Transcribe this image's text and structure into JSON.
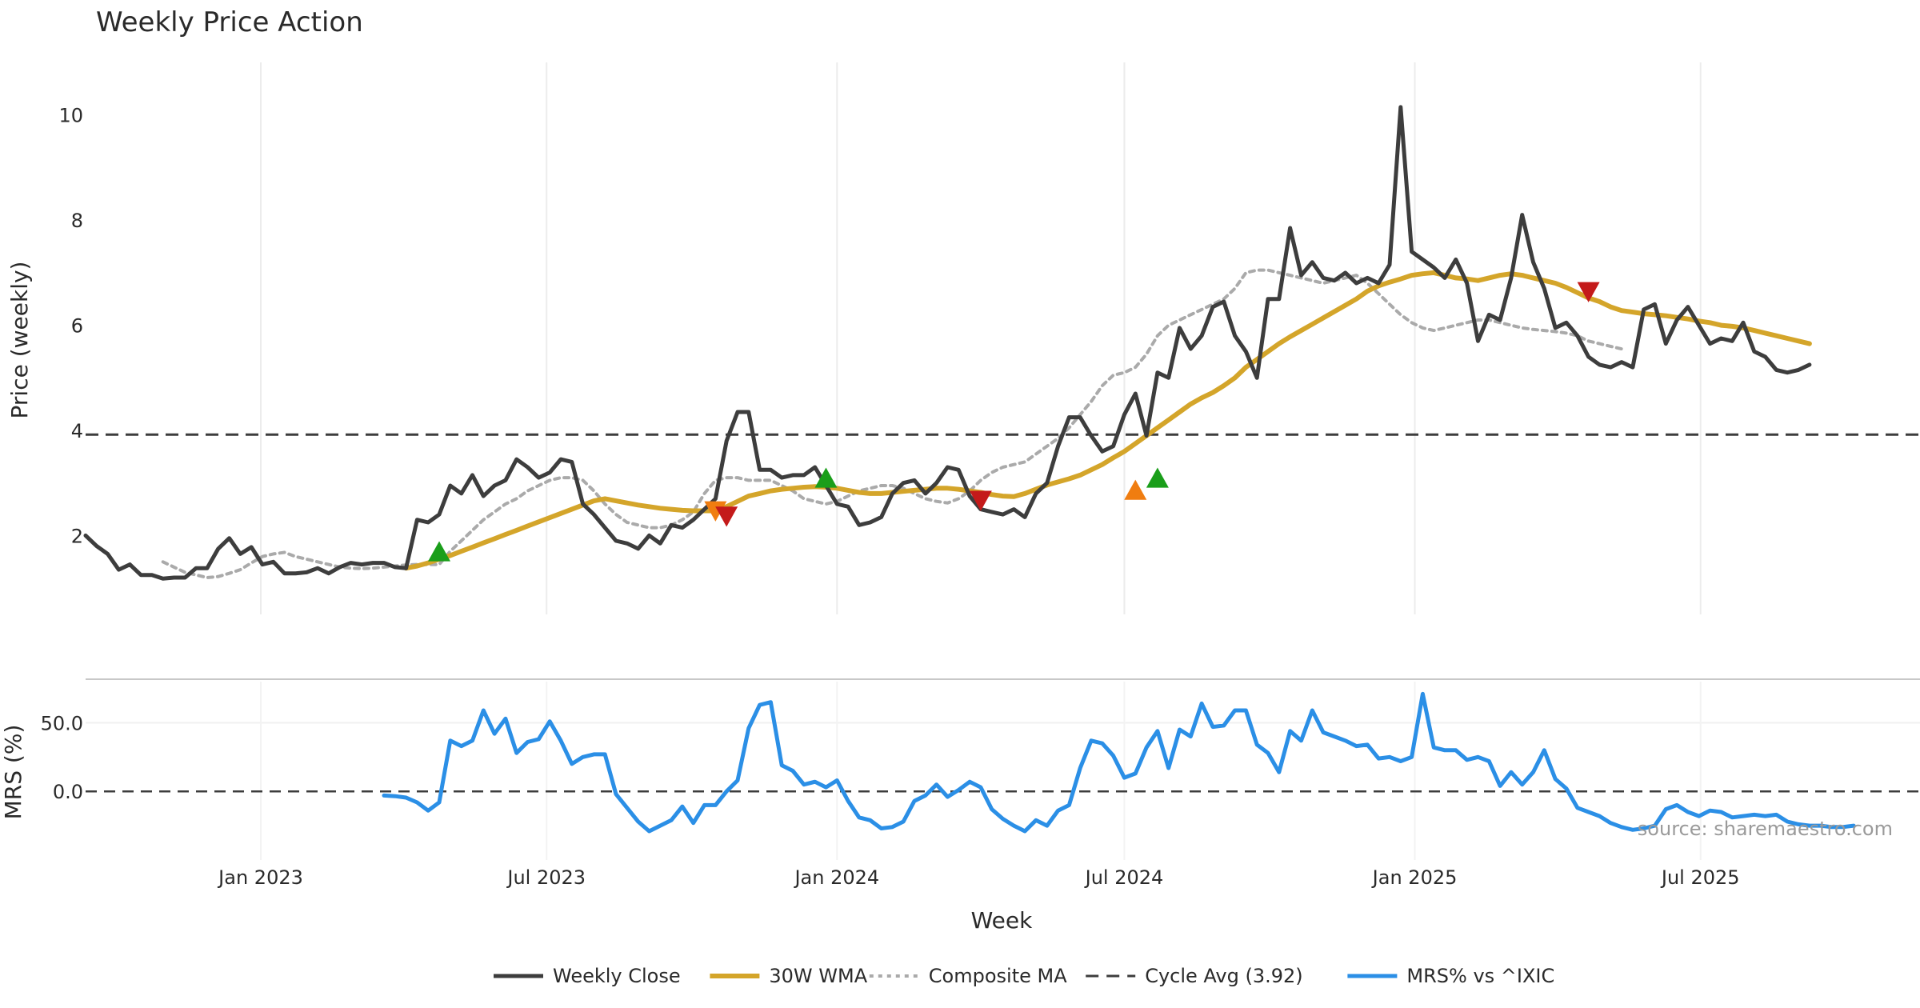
{
  "chart_data": [
    {
      "type": "line",
      "title": "Weekly Price Action",
      "xlabel": "Week",
      "ylabel": "Price (weekly)",
      "x_range": [
        "2022-09-12",
        "2025-11-17"
      ],
      "ylim": [
        0.5,
        11.0
      ],
      "y_ticks": [
        2,
        4,
        6,
        8,
        10
      ],
      "x_ticks": [
        {
          "date": "2023-01-01",
          "label": "Jan 2023"
        },
        {
          "date": "2023-07-01",
          "label": "Jul 2023"
        },
        {
          "date": "2024-01-01",
          "label": "Jan 2024"
        },
        {
          "date": "2024-07-01",
          "label": "Jul 2024"
        },
        {
          "date": "2025-01-01",
          "label": "Jan 2025"
        },
        {
          "date": "2025-07-01",
          "label": "Jul 2025"
        }
      ],
      "grid": true,
      "reference_line": {
        "name": "Cycle Avg (3.92)",
        "value": 3.92
      },
      "series": [
        {
          "name": "Weekly Close",
          "color": "#3d3d3d",
          "start": "2022-09-12",
          "values": [
            2.0,
            1.8,
            1.65,
            1.35,
            1.45,
            1.25,
            1.25,
            1.18,
            1.2,
            1.2,
            1.38,
            1.38,
            1.75,
            1.95,
            1.65,
            1.78,
            1.45,
            1.5,
            1.28,
            1.28,
            1.3,
            1.38,
            1.28,
            1.4,
            1.48,
            1.45,
            1.48,
            1.48,
            1.4,
            1.38,
            2.3,
            2.25,
            2.4,
            2.95,
            2.8,
            3.15,
            2.75,
            2.95,
            3.05,
            3.45,
            3.3,
            3.1,
            3.2,
            3.45,
            3.4,
            2.6,
            2.4,
            2.15,
            1.9,
            1.85,
            1.75,
            2.0,
            1.85,
            2.2,
            2.15,
            2.3,
            2.5,
            2.7,
            3.8,
            4.35,
            4.35,
            3.25,
            3.25,
            3.1,
            3.15,
            3.15,
            3.3,
            2.95,
            2.6,
            2.55,
            2.2,
            2.25,
            2.35,
            2.8,
            3.0,
            3.05,
            2.8,
            3.0,
            3.3,
            3.25,
            2.75,
            2.5,
            2.45,
            2.4,
            2.5,
            2.35,
            2.8,
            3.0,
            3.7,
            4.25,
            4.25,
            3.9,
            3.6,
            3.7,
            4.3,
            4.7,
            3.9,
            5.1,
            5.0,
            5.95,
            5.55,
            5.8,
            6.35,
            6.45,
            5.8,
            5.5,
            5.0,
            6.5,
            6.5,
            7.85,
            6.95,
            7.2,
            6.9,
            6.85,
            7.0,
            6.8,
            6.9,
            6.8,
            7.15,
            10.15,
            7.4,
            7.25,
            7.1,
            6.9,
            7.25,
            6.8,
            5.7,
            6.2,
            6.1,
            6.9,
            8.1,
            7.2,
            6.7,
            5.95,
            6.05,
            5.8,
            5.4,
            5.25,
            5.2,
            5.3,
            5.2,
            6.3,
            6.4,
            5.65,
            6.1,
            6.35,
            6.0,
            5.65,
            5.75,
            5.7,
            6.05,
            5.5,
            5.4,
            5.15,
            5.1,
            5.15,
            5.25
          ]
        },
        {
          "name": "30W WMA",
          "color": "#d4a52a",
          "start": "2023-04-03",
          "values": [
            1.38,
            1.42,
            1.48,
            1.55,
            1.62,
            1.7,
            1.78,
            1.86,
            1.94,
            2.02,
            2.1,
            2.18,
            2.26,
            2.34,
            2.42,
            2.5,
            2.58,
            2.66,
            2.7,
            2.66,
            2.62,
            2.58,
            2.55,
            2.52,
            2.5,
            2.48,
            2.47,
            2.47,
            2.47,
            2.55,
            2.65,
            2.75,
            2.8,
            2.85,
            2.88,
            2.9,
            2.92,
            2.93,
            2.92,
            2.9,
            2.86,
            2.82,
            2.8,
            2.8,
            2.82,
            2.84,
            2.86,
            2.88,
            2.9,
            2.9,
            2.88,
            2.85,
            2.82,
            2.78,
            2.75,
            2.74,
            2.8,
            2.88,
            2.96,
            3.02,
            3.08,
            3.15,
            3.25,
            3.35,
            3.48,
            3.6,
            3.75,
            3.9,
            4.05,
            4.2,
            4.35,
            4.5,
            4.62,
            4.72,
            4.85,
            5.0,
            5.2,
            5.35,
            5.5,
            5.65,
            5.78,
            5.9,
            6.02,
            6.14,
            6.26,
            6.38,
            6.5,
            6.65,
            6.75,
            6.82,
            6.88,
            6.95,
            6.98,
            7.0,
            6.95,
            6.9,
            6.88,
            6.85,
            6.9,
            6.95,
            6.98,
            6.95,
            6.9,
            6.85,
            6.8,
            6.72,
            6.62,
            6.52,
            6.45,
            6.35,
            6.28,
            6.25,
            6.22,
            6.2,
            6.18,
            6.15,
            6.12,
            6.08,
            6.05,
            6.0,
            5.98,
            5.95,
            5.9,
            5.85,
            5.8,
            5.75,
            5.7,
            5.65
          ]
        },
        {
          "name": "Composite MA",
          "color": "#aaaaaa",
          "start": "2022-10-31",
          "values": [
            1.5,
            1.4,
            1.3,
            1.25,
            1.2,
            1.22,
            1.28,
            1.35,
            1.48,
            1.6,
            1.65,
            1.68,
            1.6,
            1.55,
            1.5,
            1.45,
            1.4,
            1.38,
            1.37,
            1.38,
            1.4,
            1.42,
            1.44,
            1.45,
            1.45,
            1.45,
            1.7,
            1.9,
            2.1,
            2.3,
            2.45,
            2.6,
            2.7,
            2.85,
            2.95,
            3.05,
            3.1,
            3.1,
            3.05,
            2.85,
            2.6,
            2.4,
            2.25,
            2.2,
            2.15,
            2.15,
            2.2,
            2.3,
            2.45,
            2.8,
            3.05,
            3.1,
            3.1,
            3.05,
            3.05,
            3.05,
            2.95,
            2.85,
            2.7,
            2.65,
            2.6,
            2.65,
            2.75,
            2.85,
            2.9,
            2.95,
            2.95,
            2.9,
            2.8,
            2.7,
            2.65,
            2.62,
            2.7,
            2.85,
            3.05,
            3.2,
            3.3,
            3.35,
            3.4,
            3.55,
            3.7,
            3.85,
            4.05,
            4.3,
            4.55,
            4.85,
            5.05,
            5.1,
            5.2,
            5.45,
            5.8,
            6.0,
            6.1,
            6.2,
            6.3,
            6.4,
            6.5,
            6.7,
            7.0,
            7.05,
            7.05,
            7.0,
            6.95,
            6.9,
            6.85,
            6.8,
            6.85,
            6.9,
            6.95,
            6.8,
            6.6,
            6.4,
            6.2,
            6.05,
            5.95,
            5.9,
            5.95,
            6.0,
            6.05,
            6.1,
            6.1,
            6.05,
            6.0,
            5.95,
            5.92,
            5.9,
            5.88,
            5.85,
            5.8,
            5.7,
            5.65,
            5.6,
            5.55
          ]
        }
      ],
      "markers": [
        {
          "date": "2023-04-24",
          "value": 1.68,
          "kind": "up",
          "color": "#1a9e1a"
        },
        {
          "date": "2023-10-16",
          "value": 2.48,
          "kind": "down",
          "color": "#f07d10"
        },
        {
          "date": "2023-10-23",
          "value": 2.38,
          "kind": "down",
          "color": "#c41a1a"
        },
        {
          "date": "2023-12-25",
          "value": 3.08,
          "kind": "up",
          "color": "#1a9e1a"
        },
        {
          "date": "2024-04-01",
          "value": 2.68,
          "kind": "down",
          "color": "#c41a1a"
        },
        {
          "date": "2024-07-08",
          "value": 2.85,
          "kind": "up",
          "color": "#f07d10"
        },
        {
          "date": "2024-07-22",
          "value": 3.08,
          "kind": "up",
          "color": "#1a9e1a"
        },
        {
          "date": "2025-04-21",
          "value": 6.65,
          "kind": "down",
          "color": "#c41a1a"
        }
      ]
    },
    {
      "type": "line",
      "title": "",
      "xlabel": "Week",
      "ylabel": "MRS (%)",
      "ylim": [
        -50,
        80
      ],
      "y_ticks": [
        {
          "value": 0,
          "label": "0.0"
        },
        {
          "value": 50,
          "label": "50.0"
        }
      ],
      "reference_line": {
        "value": 0
      },
      "series": [
        {
          "name": "MRS% vs ^IXIC",
          "color": "#2b8fe6",
          "start": "2023-03-20",
          "values": [
            -3,
            -3.5,
            -4.5,
            -8,
            -14,
            -8,
            37,
            33,
            37,
            59,
            42,
            53,
            28,
            36,
            38,
            51,
            37,
            20,
            25,
            27,
            27,
            -2,
            -12,
            -22,
            -29,
            -25,
            -21,
            -11,
            -23,
            -10,
            -10,
            0,
            8,
            46,
            63,
            65,
            19,
            15,
            5,
            7,
            3,
            8,
            -7,
            -19,
            -21,
            -27,
            -26,
            -22,
            -7,
            -3,
            5,
            -4,
            1,
            7,
            3,
            -13,
            -20,
            -25,
            -29,
            -21,
            -25,
            -14,
            -10,
            17,
            37,
            35,
            26,
            10,
            13,
            32,
            44,
            17,
            45,
            40,
            64,
            47,
            48,
            59,
            59,
            34,
            28,
            14,
            44,
            37,
            59,
            43,
            40,
            37,
            33,
            34,
            24,
            25,
            22,
            25,
            71,
            32,
            30,
            30,
            23,
            25,
            22,
            4,
            14,
            5,
            14,
            30,
            9,
            2,
            -12,
            -15,
            -18,
            -23,
            -26,
            -28,
            -27,
            -25,
            -13,
            -10,
            -15,
            -18,
            -14,
            -15,
            -19,
            -18,
            -17,
            -18,
            -17,
            -22,
            -24,
            -25,
            -25,
            -26,
            -26,
            -25
          ]
        }
      ],
      "source": "source: sharemaestro.com"
    }
  ],
  "legend": [
    {
      "label": "Weekly Close",
      "style": "solid",
      "color": "#3d3d3d"
    },
    {
      "label": "30W WMA",
      "style": "solid-thick",
      "color": "#d4a52a"
    },
    {
      "label": "Composite MA",
      "style": "dotted",
      "color": "#aaaaaa"
    },
    {
      "label": "Cycle Avg (3.92)",
      "style": "dashed",
      "color": "#3d3d3d"
    },
    {
      "label": "MRS% vs ^IXIC",
      "style": "solid",
      "color": "#2b8fe6"
    }
  ]
}
